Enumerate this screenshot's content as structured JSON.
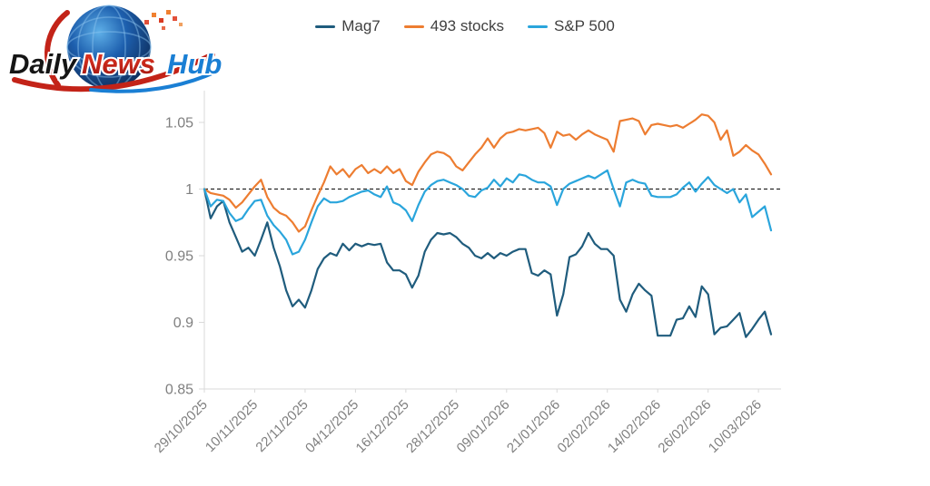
{
  "logo": {
    "daily": "Daily",
    "news": "News",
    "hub": "Hub"
  },
  "legend": {
    "items": [
      {
        "label": "Mag7",
        "color": "#1f5c7d"
      },
      {
        "label": "493 stocks",
        "color": "#ed7d31"
      },
      {
        "label": "S&P 500",
        "color": "#2aa5dc"
      }
    ]
  },
  "chart_data": {
    "type": "line",
    "title": "",
    "xlabel": "",
    "ylabel": "",
    "grid": false,
    "legend_position": "top-center",
    "x_tick_labels": [
      "29/10/2025",
      "10/11/2025",
      "22/11/2025",
      "04/12/2025",
      "16/12/2025",
      "28/12/2025",
      "09/01/2026",
      "21/01/2026",
      "02/02/2026",
      "14/02/2026",
      "26/02/2026",
      "10/03/2026"
    ],
    "points_per_tick": 8,
    "x_label_rotation_deg": 45,
    "ylim": [
      0.85,
      1.075
    ],
    "yticks": [
      0.85,
      0.9,
      0.95,
      1,
      1.05
    ],
    "ytick_labels": [
      "0.85",
      "0.9",
      "0.95",
      "1",
      "1.05"
    ],
    "baseline": {
      "value": 1,
      "style": "dashed",
      "color": "#262626"
    },
    "axis_color": "#d9d9d9",
    "label_color": "#7f7f7f",
    "series": [
      {
        "name": "Mag7",
        "color": "#1f5c7d",
        "values": [
          1.0,
          0.978,
          0.987,
          0.991,
          0.975,
          0.964,
          0.953,
          0.956,
          0.95,
          0.962,
          0.975,
          0.956,
          0.942,
          0.924,
          0.912,
          0.917,
          0.911,
          0.924,
          0.94,
          0.948,
          0.952,
          0.95,
          0.959,
          0.954,
          0.959,
          0.957,
          0.959,
          0.958,
          0.959,
          0.945,
          0.939,
          0.939,
          0.936,
          0.926,
          0.935,
          0.953,
          0.962,
          0.967,
          0.966,
          0.967,
          0.964,
          0.959,
          0.956,
          0.95,
          0.948,
          0.952,
          0.948,
          0.952,
          0.95,
          0.953,
          0.955,
          0.955,
          0.937,
          0.935,
          0.939,
          0.936,
          0.905,
          0.921,
          0.949,
          0.951,
          0.957,
          0.967,
          0.959,
          0.955,
          0.955,
          0.95,
          0.917,
          0.908,
          0.921,
          0.929,
          0.924,
          0.92,
          0.89,
          0.89,
          0.89,
          0.902,
          0.903,
          0.912,
          0.904,
          0.927,
          0.921,
          0.891,
          0.896,
          0.897,
          0.902,
          0.907,
          0.889,
          0.895,
          0.902,
          0.908,
          0.891
        ]
      },
      {
        "name": "493 stocks",
        "color": "#ed7d31",
        "values": [
          1.0,
          0.997,
          0.996,
          0.995,
          0.992,
          0.986,
          0.99,
          0.996,
          1.002,
          1.007,
          0.994,
          0.986,
          0.982,
          0.98,
          0.975,
          0.968,
          0.972,
          0.984,
          0.995,
          1.005,
          1.017,
          1.011,
          1.015,
          1.009,
          1.015,
          1.018,
          1.012,
          1.015,
          1.012,
          1.017,
          1.012,
          1.015,
          1.006,
          1.003,
          1.013,
          1.02,
          1.026,
          1.028,
          1.027,
          1.024,
          1.017,
          1.014,
          1.02,
          1.026,
          1.031,
          1.038,
          1.031,
          1.038,
          1.042,
          1.043,
          1.045,
          1.044,
          1.045,
          1.046,
          1.042,
          1.031,
          1.043,
          1.04,
          1.041,
          1.037,
          1.041,
          1.044,
          1.041,
          1.039,
          1.037,
          1.028,
          1.051,
          1.052,
          1.053,
          1.051,
          1.041,
          1.048,
          1.049,
          1.048,
          1.047,
          1.048,
          1.046,
          1.049,
          1.052,
          1.056,
          1.055,
          1.05,
          1.037,
          1.044,
          1.025,
          1.028,
          1.033,
          1.029,
          1.026,
          1.019,
          1.011
        ]
      },
      {
        "name": "S&P 500",
        "color": "#2aa5dc",
        "values": [
          1.0,
          0.987,
          0.992,
          0.991,
          0.982,
          0.976,
          0.978,
          0.985,
          0.991,
          0.992,
          0.98,
          0.973,
          0.968,
          0.962,
          0.951,
          0.953,
          0.962,
          0.975,
          0.987,
          0.993,
          0.99,
          0.99,
          0.991,
          0.994,
          0.996,
          0.998,
          0.999,
          0.996,
          0.994,
          1.002,
          0.99,
          0.988,
          0.984,
          0.976,
          0.988,
          0.998,
          1.003,
          1.006,
          1.007,
          1.005,
          1.003,
          1.0,
          0.995,
          0.994,
          0.999,
          1.001,
          1.007,
          1.002,
          1.008,
          1.005,
          1.011,
          1.01,
          1.007,
          1.005,
          1.005,
          1.002,
          0.988,
          1.0,
          1.004,
          1.006,
          1.008,
          1.01,
          1.008,
          1.011,
          1.014,
          1.0,
          0.987,
          1.005,
          1.007,
          1.005,
          1.004,
          0.995,
          0.994,
          0.994,
          0.994,
          0.996,
          1.001,
          1.005,
          0.998,
          1.004,
          1.009,
          1.003,
          1.0,
          0.997,
          1.0,
          0.99,
          0.996,
          0.979,
          0.983,
          0.987,
          0.969
        ]
      }
    ]
  }
}
